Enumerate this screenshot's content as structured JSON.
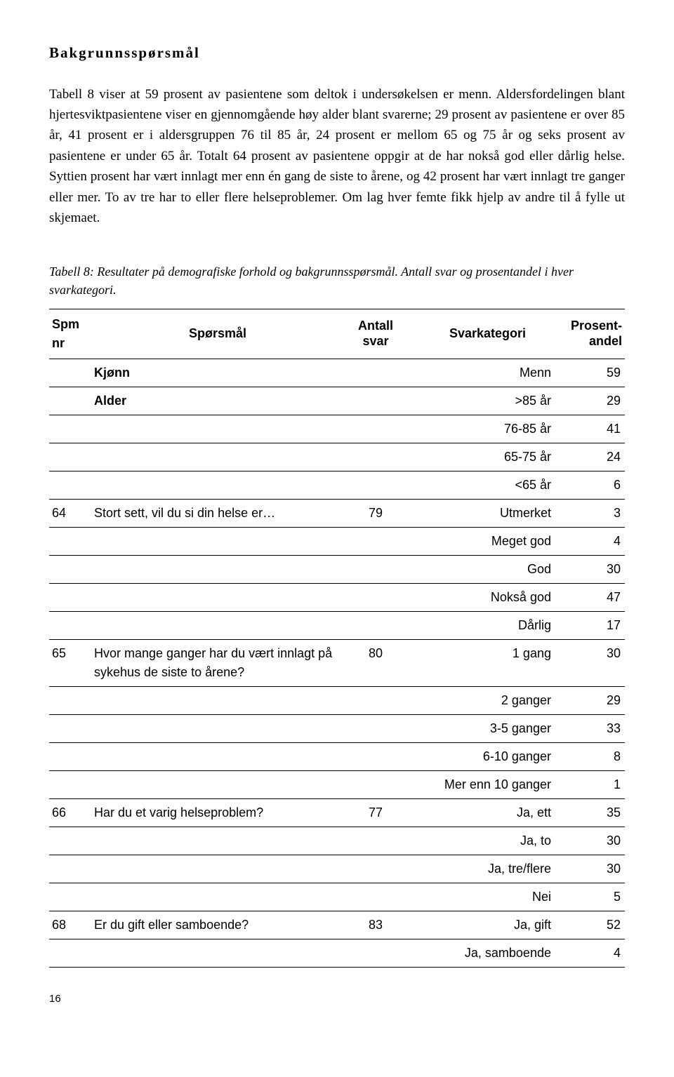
{
  "heading": "Bakgrunnsspørsmål",
  "paragraph": "Tabell 8 viser at 59 prosent av pasientene som deltok i undersøkelsen er menn. Aldersfordelingen blant hjertesviktpasientene viser en gjennomgående høy alder blant svarerne; 29 prosent av pasientene er over 85 år, 41 prosent er i aldersgruppen 76 til 85 år, 24 prosent er mellom 65 og 75 år og seks prosent av pasientene er under 65 år. Totalt 64 prosent av pasientene oppgir at de har nokså god eller dårlig helse. Syttien prosent har vært innlagt mer enn én gang de siste to årene, og 42 prosent har vært innlagt tre ganger eller mer. To av tre har to eller flere helseproblemer. Om lag hver femte fikk hjelp av andre til å fylle ut skjemaet.",
  "table_caption": "Tabell 8: Resultater på demografiske forhold og bakgrunnsspørsmål. Antall svar og prosentandel i hver svarkategori.",
  "headers": {
    "spm": "Spm nr",
    "q": "Spørsmål",
    "n1": "Antall",
    "n2": "svar",
    "cat": "Svarkategori",
    "pct1": "Prosent-",
    "pct2": "andel"
  },
  "rows": [
    {
      "spm": "",
      "q": "Kjønn",
      "bold": true,
      "n": "",
      "cat": "Menn",
      "pct": "59"
    },
    {
      "spm": "",
      "q": "Alder",
      "bold": true,
      "n": "",
      "cat": ">85 år",
      "pct": "29"
    },
    {
      "spm": "",
      "q": "",
      "n": "",
      "cat": "76-85 år",
      "pct": "41"
    },
    {
      "spm": "",
      "q": "",
      "n": "",
      "cat": "65-75 år",
      "pct": "24"
    },
    {
      "spm": "",
      "q": "",
      "n": "",
      "cat": "<65 år",
      "pct": "6"
    },
    {
      "spm": "64",
      "q": "Stort sett, vil du si din helse er…",
      "n": "79",
      "cat": "Utmerket",
      "pct": "3"
    },
    {
      "spm": "",
      "q": "",
      "n": "",
      "cat": "Meget  god",
      "pct": "4"
    },
    {
      "spm": "",
      "q": "",
      "n": "",
      "cat": "God",
      "pct": "30"
    },
    {
      "spm": "",
      "q": "",
      "n": "",
      "cat": "Nokså god",
      "pct": "47"
    },
    {
      "spm": "",
      "q": "",
      "n": "",
      "cat": "Dårlig",
      "pct": "17"
    },
    {
      "spm": "65",
      "q": "Hvor mange ganger har du vært innlagt på sykehus de siste to årene?",
      "n": "80",
      "cat": "1 gang",
      "pct": "30"
    },
    {
      "spm": "",
      "q": "",
      "n": "",
      "cat": "2 ganger",
      "pct": "29"
    },
    {
      "spm": "",
      "q": "",
      "n": "",
      "cat": "3-5 ganger",
      "pct": "33"
    },
    {
      "spm": "",
      "q": "",
      "n": "",
      "cat": "6-10 ganger",
      "pct": "8"
    },
    {
      "spm": "",
      "q": "",
      "n": "",
      "cat": "Mer enn 10 ganger",
      "pct": "1"
    },
    {
      "spm": "66",
      "q": "Har du et varig helseproblem?",
      "n": "77",
      "cat": "Ja, ett",
      "pct": "35"
    },
    {
      "spm": "",
      "q": "",
      "n": "",
      "cat": "Ja, to",
      "pct": "30"
    },
    {
      "spm": "",
      "q": "",
      "n": "",
      "cat": "Ja, tre/flere",
      "pct": "30"
    },
    {
      "spm": "",
      "q": "",
      "n": "",
      "cat": "Nei",
      "pct": "5"
    },
    {
      "spm": "68",
      "q": "Er du gift eller samboende?",
      "n": "83",
      "cat": "Ja, gift",
      "pct": "52"
    },
    {
      "spm": "",
      "q": "",
      "n": "",
      "cat": "Ja, samboende",
      "pct": "4"
    }
  ],
  "page_number": "16"
}
